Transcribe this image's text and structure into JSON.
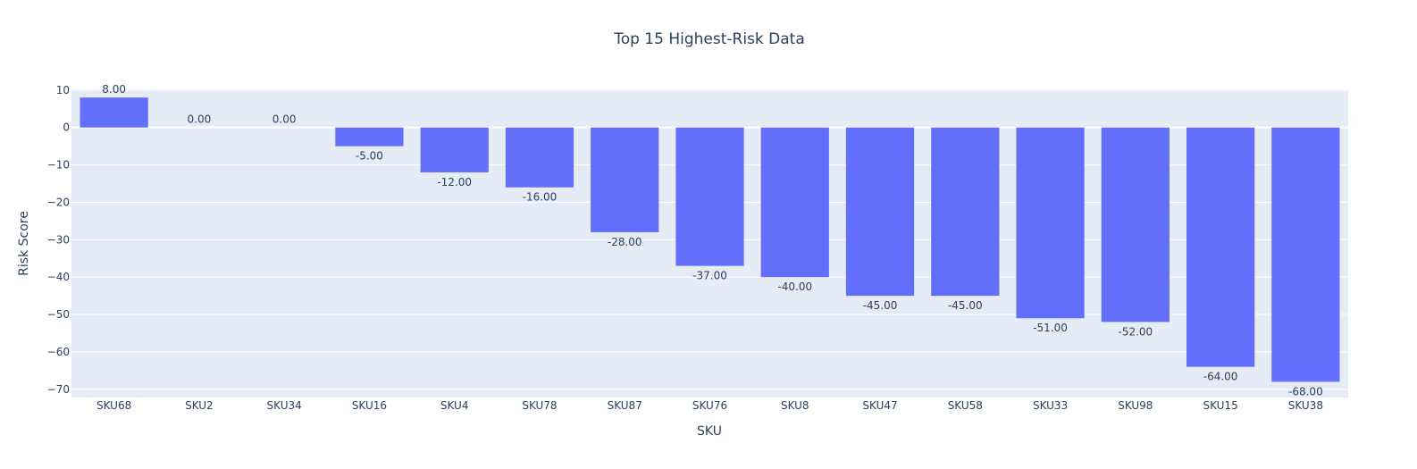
{
  "chart_data": {
    "type": "bar",
    "title": "Top 15 Highest-Risk Data",
    "xlabel": "SKU",
    "ylabel": "Risk Score",
    "categories": [
      "SKU68",
      "SKU2",
      "SKU34",
      "SKU16",
      "SKU4",
      "SKU78",
      "SKU87",
      "SKU76",
      "SKU8",
      "SKU47",
      "SKU58",
      "SKU33",
      "SKU98",
      "SKU15",
      "SKU38"
    ],
    "values": [
      8,
      0,
      0,
      -5,
      -12,
      -16,
      -28,
      -37,
      -40,
      -45,
      -45,
      -51,
      -52,
      -64,
      -68
    ],
    "data_labels": [
      "8.00",
      "0.00",
      "0.00",
      "-5.00",
      "-12.00",
      "-16.00",
      "-28.00",
      "-37.00",
      "-40.00",
      "-45.00",
      "-45.00",
      "-51.00",
      "-52.00",
      "-64.00",
      "-68.00"
    ],
    "yticks": [
      10,
      0,
      -10,
      -20,
      -30,
      -40,
      -50,
      -60,
      -70
    ],
    "ytick_labels": [
      "10",
      "0",
      "−10",
      "−20",
      "−30",
      "−40",
      "−50",
      "−60",
      "−70"
    ],
    "ylim": [
      -72.2,
      10.2
    ],
    "grid": true,
    "legend": "none"
  },
  "colors": {
    "bar": "#636efa",
    "plot_bg": "#e5ecf6",
    "grid": "#ffffff",
    "text": "#2a3f5f"
  }
}
